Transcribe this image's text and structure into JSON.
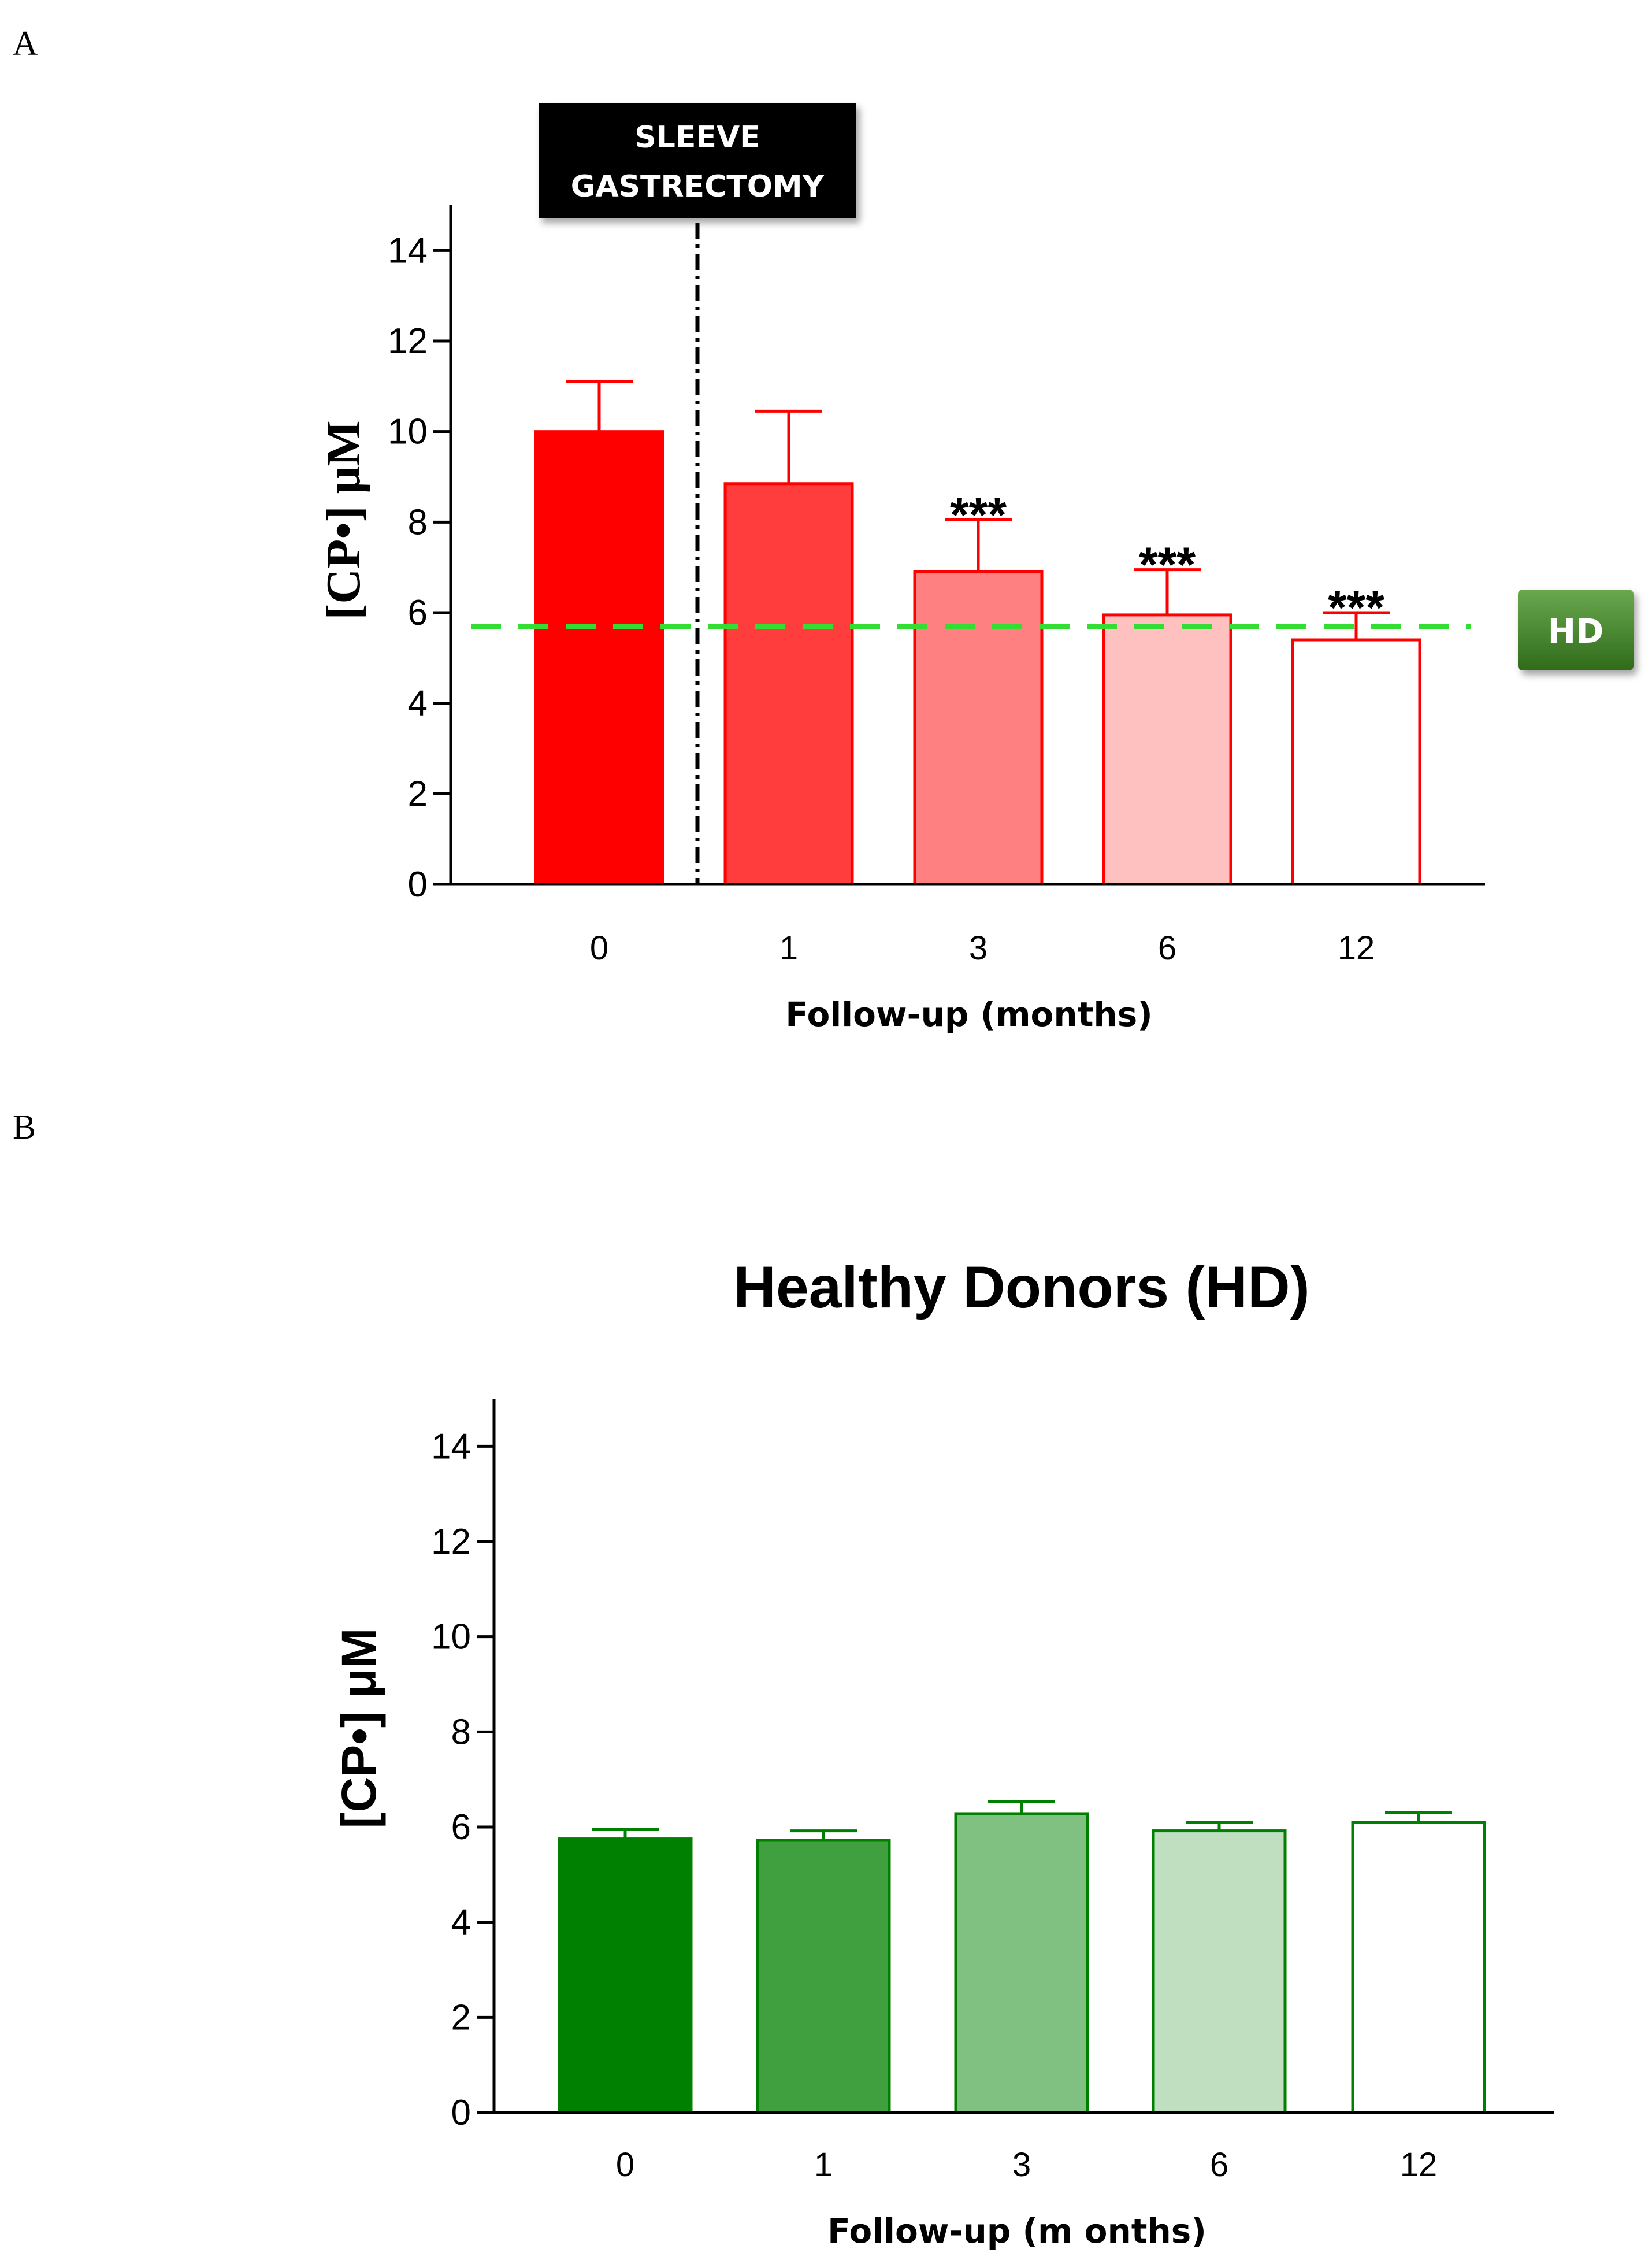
{
  "panel_labels": {
    "a": "A",
    "b": "B"
  },
  "chart_data": [
    {
      "type": "bar",
      "panel": "A",
      "title": "",
      "categories": [
        "0",
        "1",
        "3",
        "6",
        "12"
      ],
      "values": [
        10.0,
        8.85,
        6.9,
        5.95,
        5.4
      ],
      "errors": [
        1.1,
        1.6,
        1.15,
        1.0,
        0.6
      ],
      "bar_colors": [
        "#ff0000",
        "#ff3d3d",
        "#ff8080",
        "#ffc0c0",
        "#ffffff"
      ],
      "bar_stroke": "#ff0000",
      "significance": [
        "",
        "",
        "***",
        "***",
        "***"
      ],
      "xlabel": "Follow-up (months)",
      "ylabel": "[CP•] μM",
      "ylim": [
        0,
        15
      ],
      "yticks": [
        "0",
        "2",
        "4",
        "6",
        "8",
        "10",
        "12",
        "14"
      ],
      "reference_line": {
        "value": 5.7,
        "label": "HD",
        "color": "#33dd33"
      },
      "annotation": {
        "line1": "SLEEVE",
        "line2": "GASTRECTOMY"
      }
    },
    {
      "type": "bar",
      "panel": "B",
      "title": "Healthy Donors (HD)",
      "categories": [
        "0",
        "1",
        "3",
        "6",
        "12"
      ],
      "values": [
        5.75,
        5.72,
        6.28,
        5.92,
        6.1
      ],
      "errors": [
        0.2,
        0.2,
        0.25,
        0.18,
        0.2
      ],
      "bar_colors": [
        "#008000",
        "#40a040",
        "#80c080",
        "#c0dfc0",
        "#ffffff"
      ],
      "bar_stroke": "#008000",
      "significance": [
        "",
        "",
        "",
        "",
        ""
      ],
      "xlabel": "Follow-up (m onths)",
      "ylabel": "[CP•] μM",
      "ylim": [
        0,
        15
      ],
      "yticks": [
        "0",
        "2",
        "4",
        "6",
        "8",
        "10",
        "12",
        "14"
      ]
    }
  ]
}
